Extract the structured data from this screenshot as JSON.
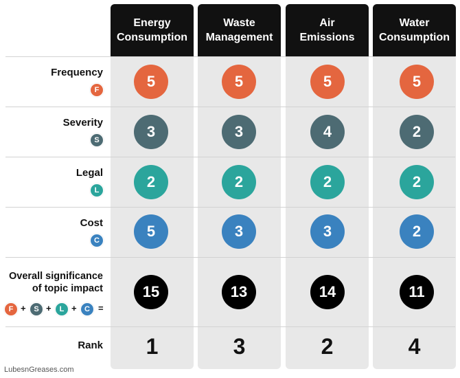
{
  "colors": {
    "frequency": "#e4663f",
    "severity": "#4d6b73",
    "legal": "#2ba59c",
    "cost": "#3a82bf",
    "overall": "#000000",
    "header_bg": "#111111",
    "column_bg": "#e8e8e8"
  },
  "columns": [
    "Energy\nConsumption",
    "Waste\nManagement",
    "Air\nEmissions",
    "Water\nConsumption"
  ],
  "rows": {
    "frequency": {
      "label": "Frequency",
      "badge": "F",
      "values": [
        "5",
        "5",
        "5",
        "5"
      ]
    },
    "severity": {
      "label": "Severity",
      "badge": "S",
      "values": [
        "3",
        "3",
        "4",
        "2"
      ]
    },
    "legal": {
      "label": "Legal",
      "badge": "L",
      "values": [
        "2",
        "2",
        "2",
        "2"
      ]
    },
    "cost": {
      "label": "Cost",
      "badge": "C",
      "values": [
        "5",
        "3",
        "3",
        "2"
      ]
    },
    "overall": {
      "label": "Overall significance\nof topic impact",
      "values": [
        "15",
        "13",
        "14",
        "11"
      ]
    },
    "rank": {
      "label": "Rank",
      "values": [
        "1",
        "3",
        "2",
        "4"
      ]
    }
  },
  "formula": {
    "plus": "+",
    "equals": "="
  },
  "source": "LubesnGreases.com"
}
